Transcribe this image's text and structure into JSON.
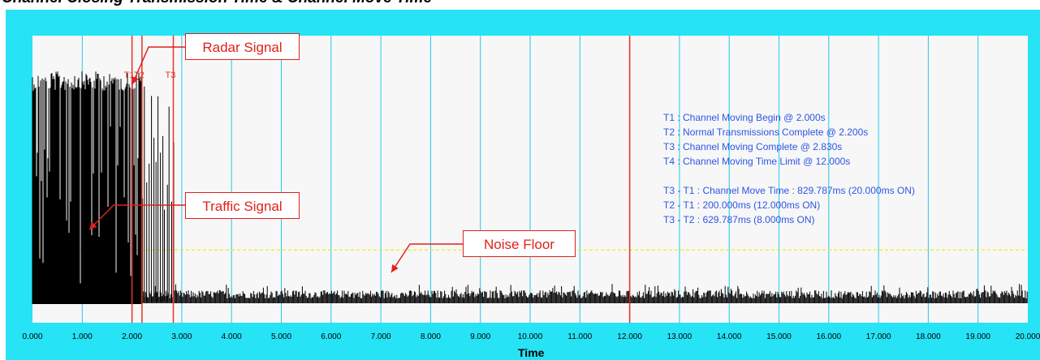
{
  "title": "Channel Closing Transmission Time & Channel Move Time",
  "colors": {
    "frame": "#26e3f5",
    "plot_bg": "#f7f7f7",
    "grid": "#27c6ea",
    "marker": "#e8322a",
    "signal": "#000000",
    "noise_threshold": "#f2e600",
    "annotation": "#2e55e6",
    "callout": "#e0211d"
  },
  "callouts": {
    "radar": "Radar Signal",
    "traffic": "Traffic Signal",
    "noise": "Noise Floor"
  },
  "marker_labels": [
    "T1",
    "T2",
    "T3"
  ],
  "annotations": [
    "T1 : Channel Moving Begin @ 2.000s",
    "T2 : Normal Transmissions Complete @ 2.200s",
    "T3 : Channel Moving Complete @ 2.830s",
    "T4 : Channel Moving Time Limit @ 12.000s",
    "",
    "T3 - T1 : Channel Move Time : 829.787ms (20.000ms ON)",
    "T2 - T1 : 200.000ms (12.000ms ON)",
    "T3 - T2 : 629.787ms (8.000ms ON)"
  ],
  "chart_data": {
    "type": "line",
    "title": "Channel Closing Transmission Time & Channel Move Time",
    "xlabel": "Time",
    "ylabel": "",
    "xlim": [
      0,
      20
    ],
    "x_ticks": [
      "0.000",
      "1.000",
      "2.000",
      "3.000",
      "4.000",
      "5.000",
      "6.000",
      "7.000",
      "8.000",
      "9.000",
      "10.000",
      "11.000",
      "12.000",
      "13.000",
      "14.000",
      "15.000",
      "16.000",
      "17.000",
      "18.000",
      "19.000",
      "20.000"
    ],
    "grid": true,
    "markers": [
      {
        "name": "T1",
        "x": 2.0
      },
      {
        "name": "T2",
        "x": 2.2
      },
      {
        "name": "T3",
        "x": 2.83
      },
      {
        "name": "T4",
        "x": 12.0
      }
    ],
    "noise_threshold_level": 0.22,
    "series": [
      {
        "values_description": "",
        "traffic_end": 2.2,
        "signal_end": 2.83,
        "noise_level": 0.05
      }
    ]
  }
}
